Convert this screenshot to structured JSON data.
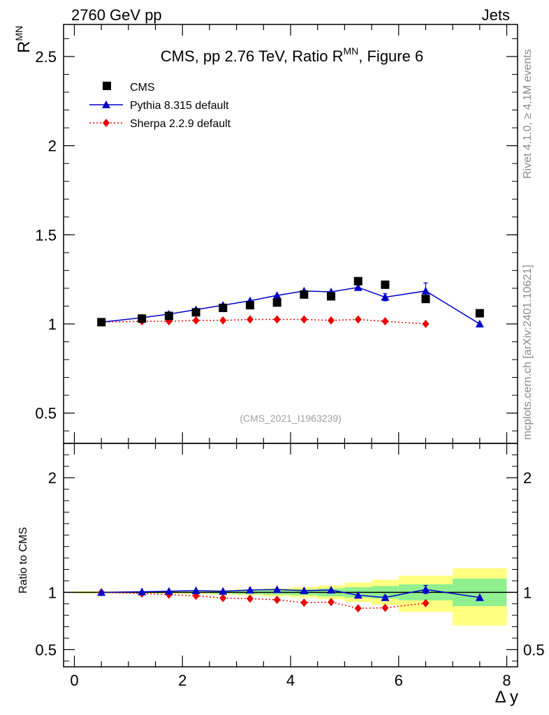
{
  "header": {
    "left": "2760 GeV pp",
    "right": "Jets"
  },
  "side_labels": {
    "rivet": "Rivet 4.1.0, ≥ 4.1M events",
    "mcplots": "mcplots.cern.ch [arXiv:2401.10621]"
  },
  "watermark": "(CMS_2021_I1963239)",
  "chart_data": [
    {
      "type": "scatter",
      "panel": "main",
      "title_main": "CMS, pp 2.76 TeV, Ratio R",
      "title_sup": "MN",
      "title_tail": ", Figure 6",
      "ylabel": "R",
      "ylabel_sup": "MN",
      "xlim": [
        -0.2,
        8.2
      ],
      "ylim": [
        0.33,
        2.68
      ],
      "yticks": [
        0.5,
        1,
        1.5,
        2,
        2.5
      ],
      "ytick_labels": [
        "0.5",
        "1",
        "1.5",
        "2",
        "2.5"
      ],
      "legend": [
        "CMS",
        "Pythia 8.315 default",
        "Sherpa 2.2.9 default"
      ],
      "series": [
        {
          "name": "CMS",
          "color": "#000000",
          "marker": "square",
          "x": [
            0.5,
            1.25,
            1.75,
            2.25,
            2.75,
            3.25,
            3.75,
            4.25,
            4.75,
            5.25,
            5.75,
            6.5,
            7.5
          ],
          "y": [
            1.01,
            1.03,
            1.045,
            1.065,
            1.09,
            1.105,
            1.12,
            1.165,
            1.155,
            1.24,
            1.22,
            1.14,
            1.06
          ]
        },
        {
          "name": "Pythia 8.315 default",
          "color": "#0000cc",
          "marker": "triangle",
          "line": "solid",
          "x": [
            0.5,
            1.25,
            1.75,
            2.25,
            2.75,
            3.25,
            3.75,
            4.25,
            4.75,
            5.25,
            5.75,
            6.5,
            7.5
          ],
          "y": [
            1.01,
            1.035,
            1.055,
            1.08,
            1.105,
            1.13,
            1.16,
            1.185,
            1.18,
            1.205,
            1.15,
            1.185,
            1.0
          ],
          "yerr": [
            0,
            0,
            0,
            0,
            0,
            0,
            0,
            0,
            0,
            0,
            0.02,
            0.045,
            0
          ]
        },
        {
          "name": "Sherpa 2.2.9 default",
          "color": "#ee0000",
          "marker": "diamond",
          "line": "dotted",
          "x": [
            0.5,
            1.25,
            1.75,
            2.25,
            2.75,
            3.25,
            3.75,
            4.25,
            4.75,
            5.25,
            5.75,
            6.5
          ],
          "y": [
            1.01,
            1.015,
            1.015,
            1.02,
            1.02,
            1.025,
            1.025,
            1.025,
            1.02,
            1.025,
            1.015,
            1.0
          ]
        }
      ]
    },
    {
      "type": "scatter",
      "panel": "ratio",
      "ylabel": "Ratio to CMS",
      "xlabel": "Δ y",
      "xlim": [
        -0.2,
        8.2
      ],
      "ylim": [
        0.35,
        2.3
      ],
      "xticks": [
        0,
        2,
        4,
        6,
        8
      ],
      "xtick_labels": [
        "0",
        "2",
        "4",
        "6",
        "8"
      ],
      "yticks": [
        0.5,
        1,
        2
      ],
      "ytick_labels": [
        "0.5",
        "1",
        "2"
      ],
      "bands": [
        {
          "x0": 0.0,
          "x1": 1.0,
          "in": [
            0.995,
            1.005
          ],
          "out": [
            0.99,
            1.01
          ]
        },
        {
          "x0": 1.0,
          "x1": 1.5,
          "in": [
            0.995,
            1.005
          ],
          "out": [
            0.99,
            1.01
          ]
        },
        {
          "x0": 1.5,
          "x1": 2.0,
          "in": [
            0.994,
            1.006
          ],
          "out": [
            0.988,
            1.012
          ]
        },
        {
          "x0": 2.0,
          "x1": 2.5,
          "in": [
            0.993,
            1.007
          ],
          "out": [
            0.985,
            1.015
          ]
        },
        {
          "x0": 2.5,
          "x1": 3.0,
          "in": [
            0.99,
            1.01
          ],
          "out": [
            0.98,
            1.02
          ]
        },
        {
          "x0": 3.0,
          "x1": 3.5,
          "in": [
            0.985,
            1.015
          ],
          "out": [
            0.975,
            1.025
          ]
        },
        {
          "x0": 3.5,
          "x1": 4.0,
          "in": [
            0.98,
            1.02
          ],
          "out": [
            0.965,
            1.035
          ]
        },
        {
          "x0": 4.0,
          "x1": 4.5,
          "in": [
            0.975,
            1.025
          ],
          "out": [
            0.955,
            1.045
          ]
        },
        {
          "x0": 4.5,
          "x1": 5.0,
          "in": [
            0.965,
            1.035
          ],
          "out": [
            0.94,
            1.06
          ]
        },
        {
          "x0": 5.0,
          "x1": 5.5,
          "in": [
            0.955,
            1.045
          ],
          "out": [
            0.915,
            1.085
          ]
        },
        {
          "x0": 5.5,
          "x1": 6.0,
          "in": [
            0.945,
            1.055
          ],
          "out": [
            0.89,
            1.11
          ]
        },
        {
          "x0": 6.0,
          "x1": 7.0,
          "in": [
            0.93,
            1.07
          ],
          "out": [
            0.83,
            1.145
          ]
        },
        {
          "x0": 7.0,
          "x1": 8.0,
          "in": [
            0.88,
            1.12
          ],
          "out": [
            0.71,
            1.21
          ]
        }
      ],
      "series": [
        {
          "name": "Pythia 8.315 default",
          "color": "#0000cc",
          "marker": "triangle",
          "line": "solid",
          "x": [
            0.5,
            1.25,
            1.75,
            2.25,
            2.75,
            3.25,
            3.75,
            4.25,
            4.75,
            5.25,
            5.75,
            6.5,
            7.5
          ],
          "y": [
            1.0,
            1.005,
            1.01,
            1.015,
            1.01,
            1.02,
            1.025,
            1.015,
            1.02,
            0.975,
            0.955,
            1.025,
            0.955
          ],
          "yerr": [
            0,
            0,
            0,
            0,
            0,
            0,
            0,
            0,
            0,
            0,
            0.015,
            0.035,
            0
          ]
        },
        {
          "name": "Sherpa 2.2.9 default",
          "color": "#ee0000",
          "marker": "diamond",
          "line": "dotted",
          "x": [
            0.5,
            1.25,
            1.75,
            2.25,
            2.75,
            3.25,
            3.75,
            4.25,
            4.75,
            5.25,
            5.75,
            6.5
          ],
          "y": [
            1.0,
            0.99,
            0.98,
            0.97,
            0.95,
            0.945,
            0.935,
            0.91,
            0.915,
            0.86,
            0.865,
            0.905
          ]
        }
      ]
    }
  ]
}
